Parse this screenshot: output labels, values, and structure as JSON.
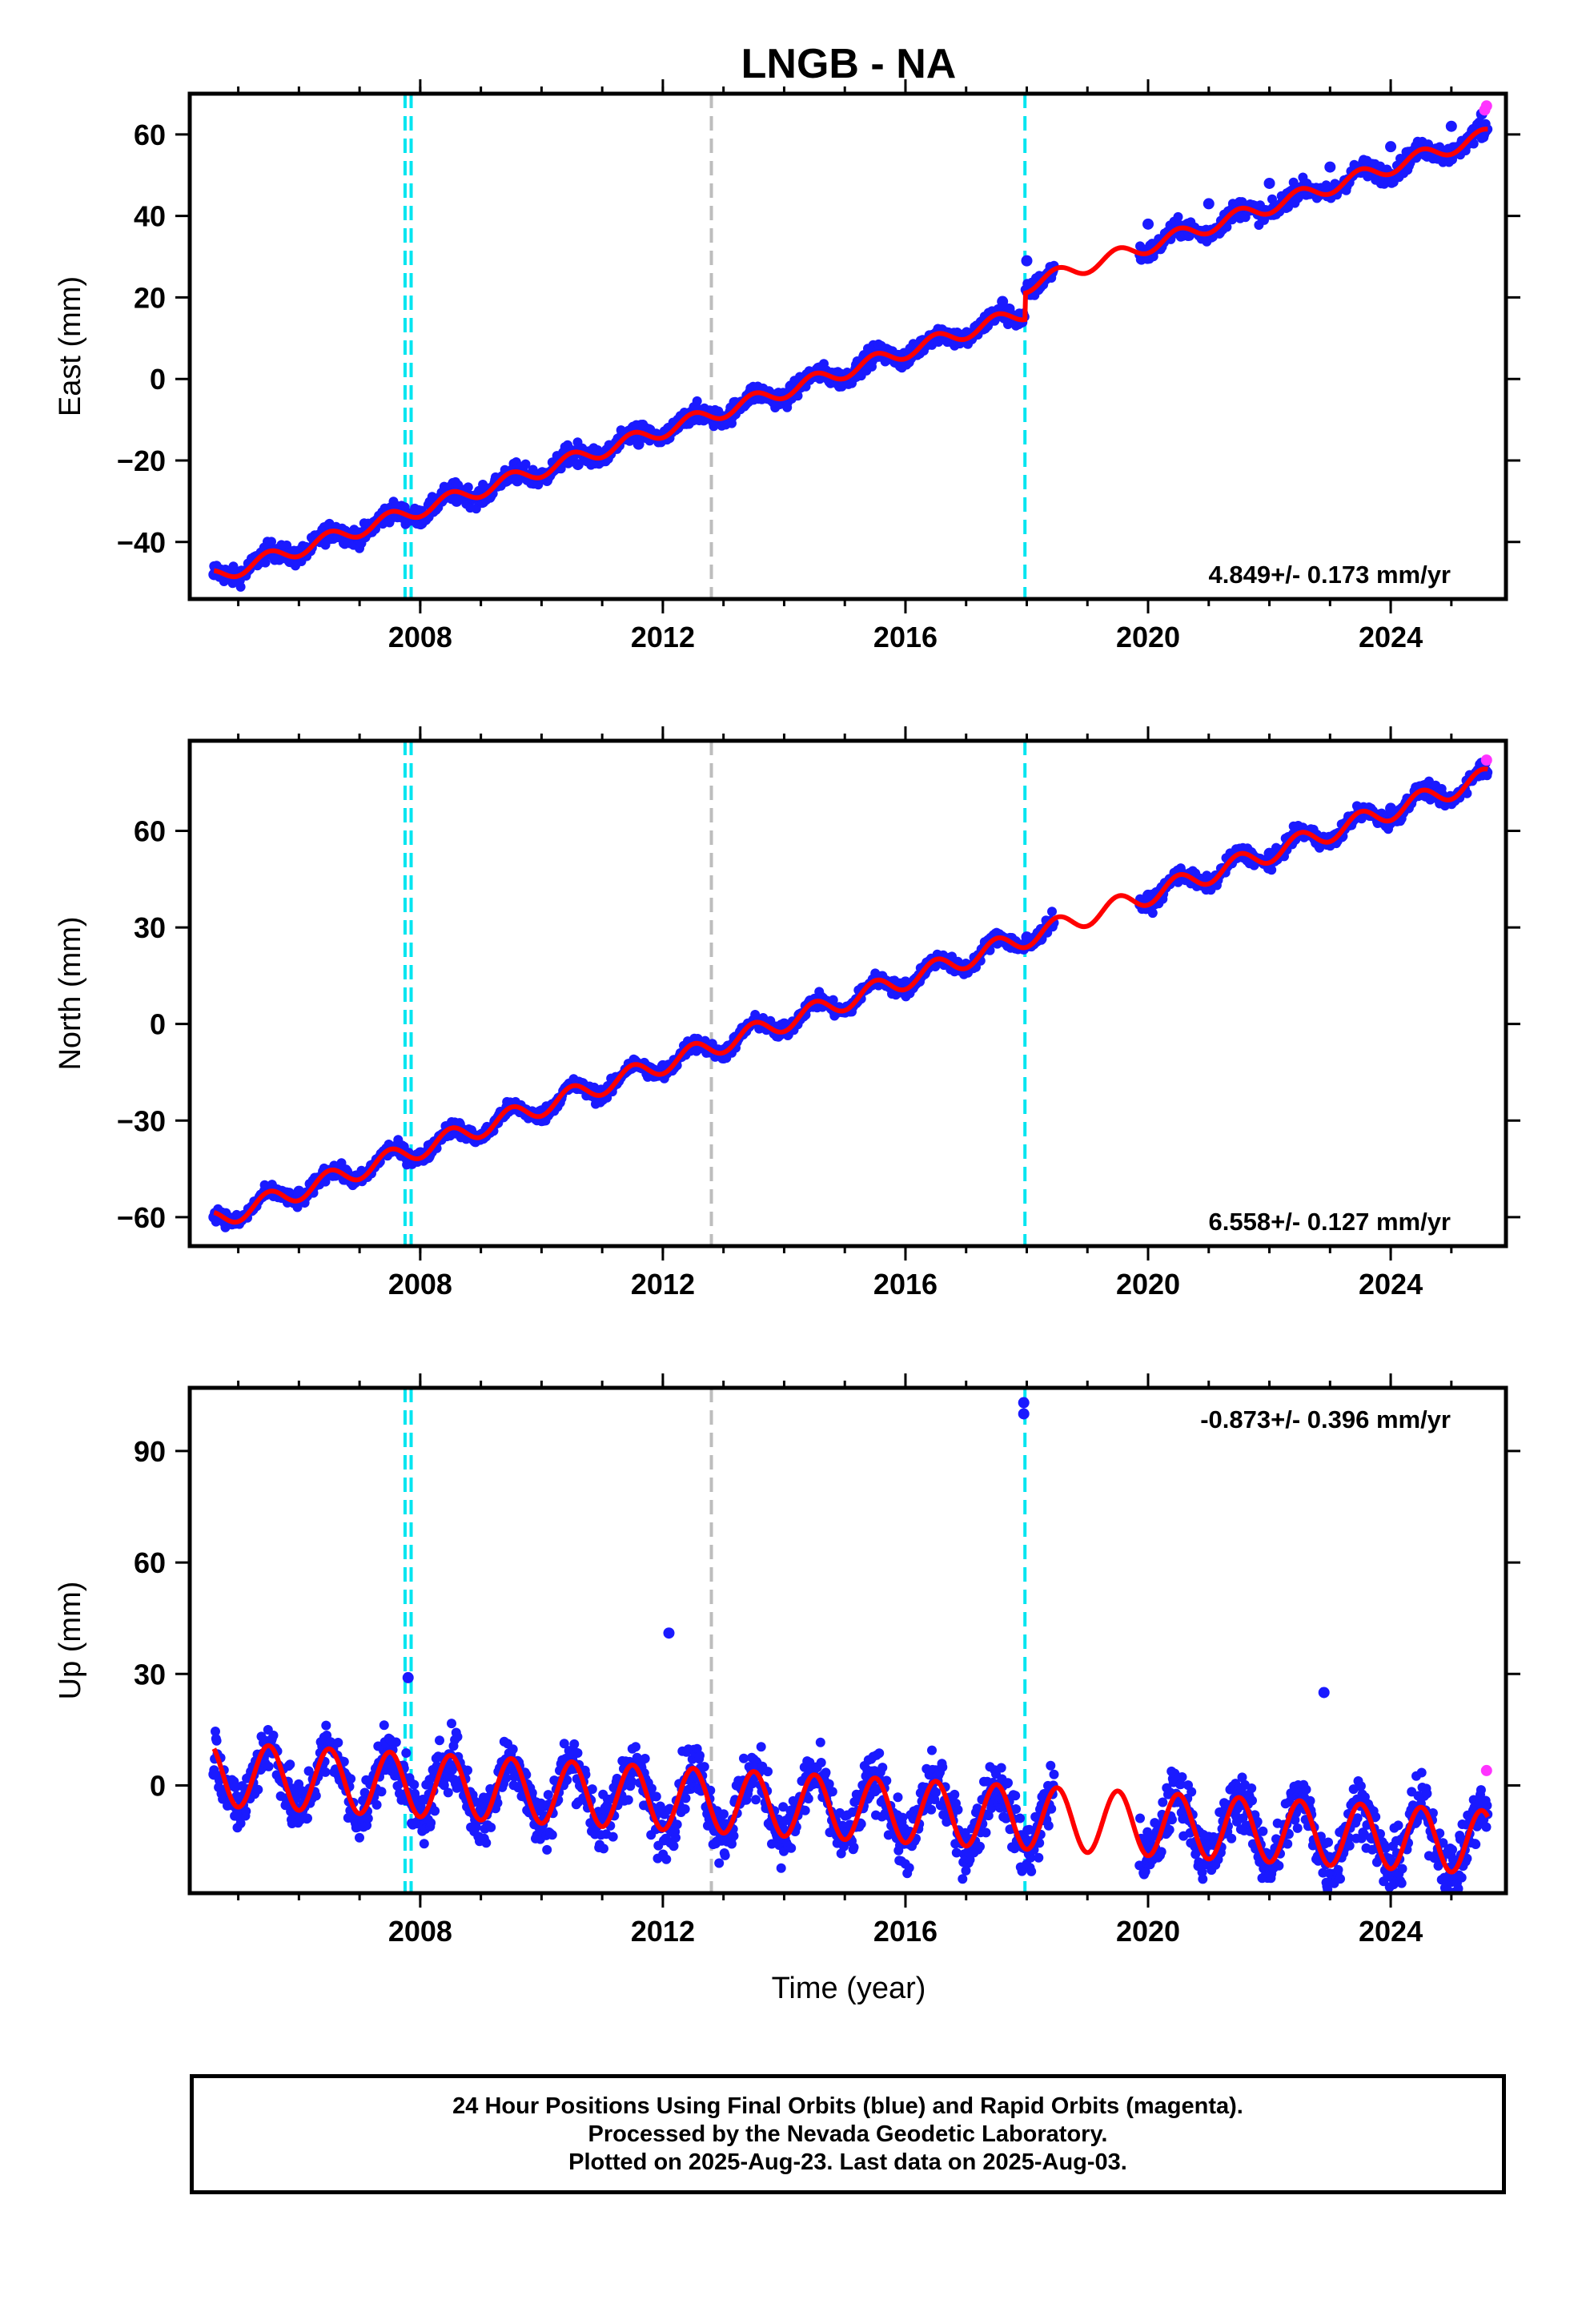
{
  "title": "LNGB - NA",
  "xlabel": "Time (year)",
  "colors": {
    "data": "#1a1aff",
    "rapid": "#ff33ff",
    "model": "#ff0000",
    "equipment_change": "#00e5f0",
    "earthquake": "#bdbdbd"
  },
  "chart_data": [
    {
      "type": "scatter",
      "component": "East",
      "ylabel": "East (mm)",
      "rate_label": "4.849+/- 0.173 mm/yr",
      "xlim": [
        2004.2,
        2025.9
      ],
      "ylim": [
        -54,
        70
      ],
      "yticks": [
        -40,
        -20,
        0,
        20,
        40,
        60
      ],
      "xticks": [
        2008,
        2012,
        2016,
        2020,
        2024
      ],
      "x_minor_step": 1,
      "data_start": 2004.6,
      "data_end": 2025.6,
      "gap": [
        2018.45,
        2019.85
      ],
      "series": [
        {
          "label": "final",
          "x": [
            2004.6,
            2005.6,
            2006.6,
            2007.6,
            2008.6,
            2009.6,
            2010.6,
            2011.6,
            2012.6,
            2013.6,
            2014.6,
            2015.6,
            2016.6,
            2017.6,
            2018.0,
            2020.0,
            2021.0,
            2022.0,
            2023.0,
            2024.0,
            2025.0,
            2025.5
          ],
          "y": [
            -48,
            -43,
            -37,
            -32,
            -30,
            -25,
            -21,
            -16,
            -10,
            -4,
            2,
            7,
            12,
            19,
            29,
            38,
            43,
            48,
            52,
            57,
            62,
            65
          ]
        },
        {
          "label": "rapid",
          "x": [
            2025.55,
            2025.58
          ],
          "y": [
            66,
            67
          ]
        }
      ],
      "model": {
        "x0": 2004.6,
        "y0": -48.5,
        "trend": 4.849,
        "annual_amp": 1.8,
        "offsets": [
          {
            "x": 2017.97,
            "dy": 6.5
          }
        ]
      },
      "equipment_changes": [
        2007.75,
        2007.85,
        2017.97
      ],
      "earthquakes": [
        2012.8
      ]
    },
    {
      "type": "scatter",
      "component": "North",
      "ylabel": "North (mm)",
      "rate_label": "6.558+/- 0.127 mm/yr",
      "xlim": [
        2004.2,
        2025.9
      ],
      "ylim": [
        -69,
        88
      ],
      "yticks": [
        -60,
        -30,
        0,
        30,
        60
      ],
      "xticks": [
        2008,
        2012,
        2016,
        2020,
        2024
      ],
      "x_minor_step": 1,
      "data_start": 2004.6,
      "data_end": 2025.6,
      "gap": [
        2018.45,
        2019.85
      ],
      "series": [
        {
          "label": "final",
          "x": [
            2004.6,
            2006.0,
            2008.0,
            2010.0,
            2012.0,
            2014.0,
            2016.0,
            2018.0,
            2020.0,
            2022.0,
            2024.0,
            2025.5
          ],
          "y": [
            -60,
            -52,
            -40,
            -27,
            -13,
            0,
            13,
            27,
            40,
            53,
            67,
            81
          ]
        },
        {
          "label": "rapid",
          "x": [
            2025.58
          ],
          "y": [
            82
          ]
        }
      ],
      "model": {
        "x0": 2004.6,
        "y0": -61,
        "trend": 6.558,
        "annual_amp": 3.0,
        "offsets": []
      },
      "equipment_changes": [
        2007.75,
        2007.85,
        2017.97
      ],
      "earthquakes": [
        2012.8
      ]
    },
    {
      "type": "scatter",
      "component": "Up",
      "ylabel": "Up (mm)",
      "rate_label": "-0.873+/- 0.396 mm/yr",
      "xlim": [
        2004.2,
        2025.9
      ],
      "ylim": [
        -29,
        107
      ],
      "yticks": [
        0,
        30,
        60,
        90
      ],
      "xticks": [
        2008,
        2012,
        2016,
        2020,
        2024
      ],
      "x_minor_step": 1,
      "data_start": 2004.6,
      "data_end": 2025.6,
      "gap": [
        2018.45,
        2019.85
      ],
      "series": [
        {
          "label": "final",
          "x": [
            2004.6,
            2007.8,
            2012.1,
            2017.95,
            2017.95,
            2022.9,
            2025.5
          ],
          "y": [
            3,
            29,
            41,
            100,
            103,
            25,
            -5
          ]
        },
        {
          "label": "rapid",
          "x": [
            2025.58
          ],
          "y": [
            4
          ]
        }
      ],
      "model": {
        "x0": 2004.6,
        "y0": 3,
        "trend": -0.873,
        "annual_amp": 8.5,
        "offsets": []
      },
      "equipment_changes": [
        2007.75,
        2007.85,
        2017.97
      ],
      "earthquakes": [
        2012.8
      ]
    }
  ],
  "footer": {
    "line1": "24 Hour Positions Using Final Orbits (blue) and Rapid Orbits (magenta).",
    "line2": "Processed by the Nevada Geodetic Laboratory.",
    "line3": "Plotted on 2025-Aug-23. Last data on 2025-Aug-03."
  }
}
